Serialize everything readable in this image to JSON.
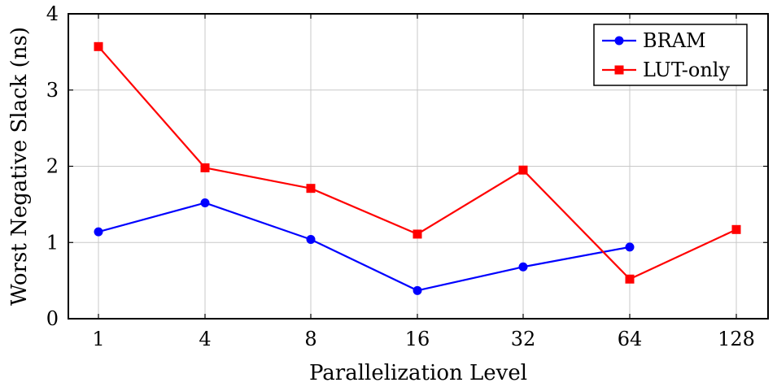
{
  "chart_data": {
    "type": "line",
    "title": "",
    "xlabel": "Parallelization Level",
    "ylabel": "Worst Negative Slack (ns)",
    "categories": [
      "1",
      "4",
      "8",
      "16",
      "32",
      "64",
      "128"
    ],
    "ylim": [
      0,
      4
    ],
    "yticks": [
      "0",
      "1",
      "2",
      "3",
      "4"
    ],
    "grid": true,
    "legend_position": "top-right",
    "series": [
      {
        "name": "BRAM",
        "color": "#0000ff",
        "marker": "circle",
        "values": [
          1.14,
          1.52,
          1.04,
          0.37,
          0.68,
          0.94,
          null
        ]
      },
      {
        "name": "LUT-only",
        "color": "#ff0000",
        "marker": "square",
        "values": [
          3.57,
          1.98,
          1.71,
          1.11,
          1.95,
          0.52,
          1.17
        ]
      }
    ]
  }
}
